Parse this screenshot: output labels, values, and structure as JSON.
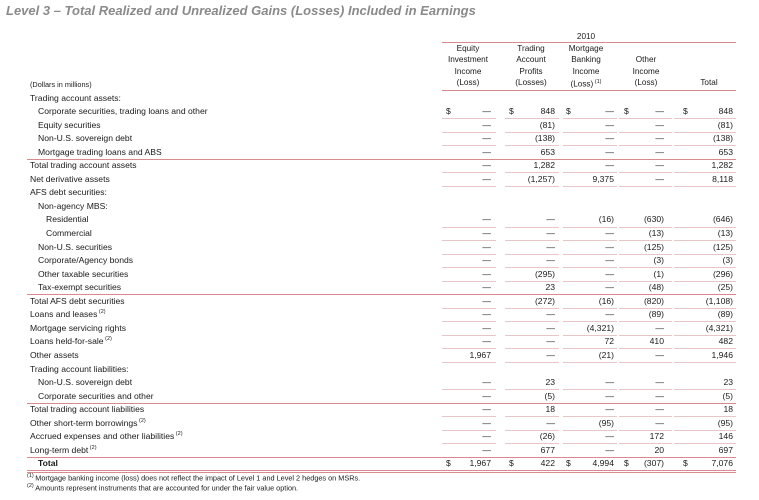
{
  "title": "Level 3 – Total Realized and Unrealized Gains (Losses) Included in Earnings",
  "year": "2010",
  "units": "(Dollars in millions)",
  "columns": [
    {
      "lines": [
        "Equity",
        "Investment",
        "Income",
        "(Loss)"
      ]
    },
    {
      "lines": [
        "Trading",
        "Account",
        "Profits",
        "(Losses)"
      ]
    },
    {
      "lines": [
        "Mortgage",
        "Banking",
        "Income",
        "(Loss)"
      ],
      "sup": "(1)"
    },
    {
      "lines": [
        "Other",
        "Income",
        "(Loss)"
      ]
    },
    {
      "lines": [
        "Total"
      ]
    }
  ],
  "rows": [
    {
      "label": "Trading account assets:",
      "indent": 0,
      "values": [
        "",
        "",
        "",
        "",
        ""
      ]
    },
    {
      "label": "Corporate securities, trading loans and other",
      "indent": 1,
      "values": [
        "—",
        "848",
        "—",
        "—",
        "848"
      ],
      "dollars": true
    },
    {
      "label": "Equity securities",
      "indent": 1,
      "values": [
        "—",
        "(81)",
        "—",
        "—",
        "(81)"
      ]
    },
    {
      "label": "Non-U.S. sovereign debt",
      "indent": 1,
      "values": [
        "—",
        "(138)",
        "—",
        "—",
        "(138)"
      ]
    },
    {
      "label": "Mortgage trading loans and ABS",
      "indent": 1,
      "values": [
        "—",
        "653",
        "—",
        "—",
        "653"
      ],
      "rule": true
    },
    {
      "label": "Total trading account assets",
      "indent": 0,
      "values": [
        "—",
        "1,282",
        "—",
        "—",
        "1,282"
      ]
    },
    {
      "label": "Net derivative assets",
      "indent": 0,
      "values": [
        "—",
        "(1,257)",
        "9,375",
        "—",
        "8,118"
      ]
    },
    {
      "label": "AFS debt securities:",
      "indent": 0,
      "values": [
        "",
        "",
        "",
        "",
        ""
      ]
    },
    {
      "label": "Non-agency MBS:",
      "indent": 1,
      "values": [
        "",
        "",
        "",
        "",
        ""
      ]
    },
    {
      "label": "Residential",
      "indent": 2,
      "values": [
        "—",
        "—",
        "(16)",
        "(630)",
        "(646)"
      ]
    },
    {
      "label": "Commercial",
      "indent": 2,
      "values": [
        "—",
        "—",
        "—",
        "(13)",
        "(13)"
      ]
    },
    {
      "label": "Non-U.S. securities",
      "indent": 1,
      "values": [
        "—",
        "—",
        "—",
        "(125)",
        "(125)"
      ]
    },
    {
      "label": "Corporate/Agency bonds",
      "indent": 1,
      "values": [
        "—",
        "—",
        "—",
        "(3)",
        "(3)"
      ]
    },
    {
      "label": "Other taxable securities",
      "indent": 1,
      "values": [
        "—",
        "(295)",
        "—",
        "(1)",
        "(296)"
      ]
    },
    {
      "label": "Tax-exempt securities",
      "indent": 1,
      "values": [
        "—",
        "23",
        "—",
        "(48)",
        "(25)"
      ],
      "rule": true
    },
    {
      "label": "Total AFS debt securities",
      "indent": 0,
      "values": [
        "—",
        "(272)",
        "(16)",
        "(820)",
        "(1,108)"
      ]
    },
    {
      "label": "Loans and leases",
      "sup": "(2)",
      "indent": 0,
      "values": [
        "—",
        "—",
        "—",
        "(89)",
        "(89)"
      ]
    },
    {
      "label": "Mortgage servicing rights",
      "indent": 0,
      "values": [
        "—",
        "—",
        "(4,321)",
        "—",
        "(4,321)"
      ]
    },
    {
      "label": "Loans held-for-sale",
      "sup": "(2)",
      "indent": 0,
      "values": [
        "—",
        "—",
        "72",
        "410",
        "482"
      ]
    },
    {
      "label": "Other assets",
      "indent": 0,
      "values": [
        "1,967",
        "—",
        "(21)",
        "—",
        "1,946"
      ]
    },
    {
      "label": "Trading account liabilities:",
      "indent": 0,
      "values": [
        "",
        "",
        "",
        "",
        ""
      ]
    },
    {
      "label": "Non-U.S. sovereign debt",
      "indent": 1,
      "values": [
        "—",
        "23",
        "—",
        "—",
        "23"
      ]
    },
    {
      "label": "Corporate securities and other",
      "indent": 1,
      "values": [
        "—",
        "(5)",
        "—",
        "—",
        "(5)"
      ],
      "rule": true
    },
    {
      "label": "Total trading account liabilities",
      "indent": 0,
      "values": [
        "—",
        "18",
        "—",
        "—",
        "18"
      ]
    },
    {
      "label": "Other short-term borrowings",
      "sup": "(2)",
      "indent": 0,
      "values": [
        "—",
        "—",
        "(95)",
        "—",
        "(95)"
      ]
    },
    {
      "label": "Accrued expenses and other liabilities",
      "sup": "(2)",
      "indent": 0,
      "values": [
        "—",
        "(26)",
        "—",
        "172",
        "146"
      ]
    },
    {
      "label": "Long-term debt",
      "sup": "(2)",
      "indent": 0,
      "values": [
        "—",
        "677",
        "—",
        "20",
        "697"
      ],
      "rule": true
    },
    {
      "label": "Total",
      "indent": 1,
      "bold": true,
      "values": [
        "1,967",
        "422",
        "4,994",
        "(307)",
        "7,076"
      ],
      "dollars": true
    }
  ],
  "footnotes": [
    {
      "mark": "(1)",
      "text": "Mortgage banking income (loss) does not reflect the impact of Level 1 and Level 2 hedges on MSRs."
    },
    {
      "mark": "(2)",
      "text": "Amounts represent instruments that are accounted for under the fair value option."
    }
  ]
}
